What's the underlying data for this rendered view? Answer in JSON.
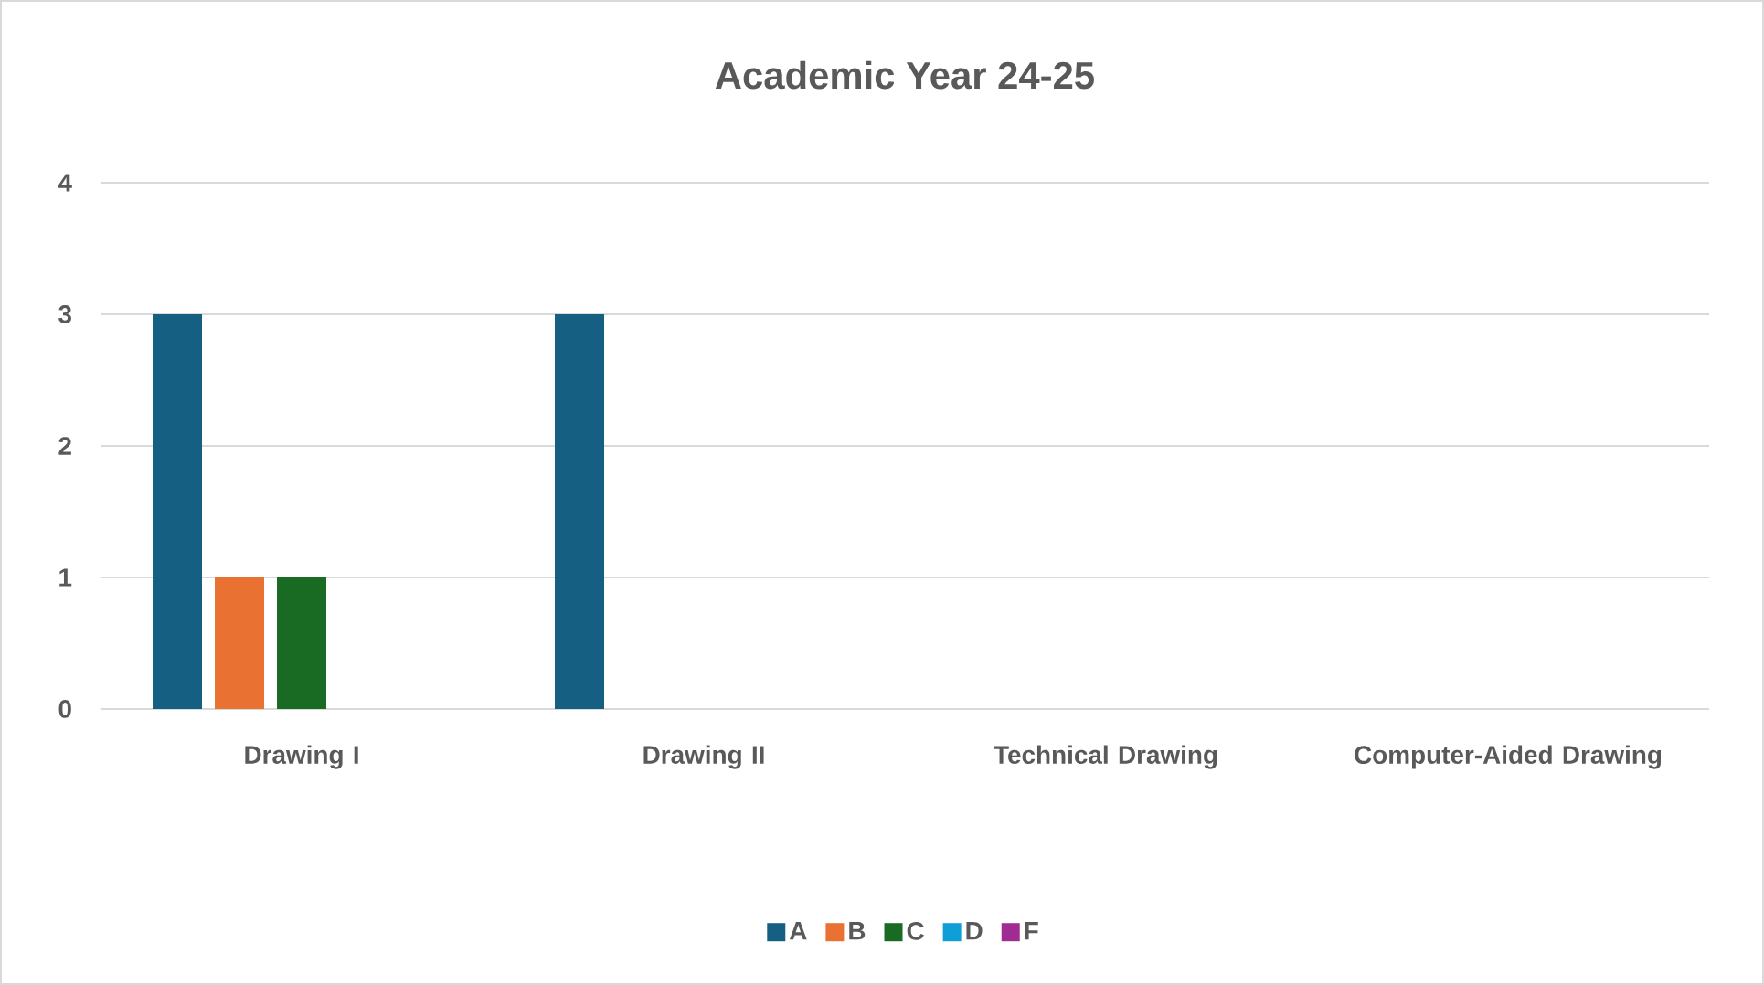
{
  "chart_data": {
    "type": "bar",
    "title": "Academic Year 24-25",
    "categories": [
      "Drawing I",
      "Drawing II",
      "Technical Drawing",
      "Computer-Aided Drawing"
    ],
    "series": [
      {
        "name": "A",
        "color": "#156082",
        "values": [
          3,
          3,
          0,
          0
        ]
      },
      {
        "name": "B",
        "color": "#e97132",
        "values": [
          1,
          0,
          0,
          0
        ]
      },
      {
        "name": "C",
        "color": "#196b24",
        "values": [
          1,
          0,
          0,
          0
        ]
      },
      {
        "name": "D",
        "color": "#0f9ed5",
        "values": [
          0,
          0,
          0,
          0
        ]
      },
      {
        "name": "F",
        "color": "#a02b93",
        "values": [
          0,
          0,
          0,
          0
        ]
      }
    ],
    "ylim": [
      0,
      4
    ],
    "yticks": [
      0,
      1,
      2,
      3,
      4
    ],
    "grid": "y",
    "legend": "bottom"
  }
}
